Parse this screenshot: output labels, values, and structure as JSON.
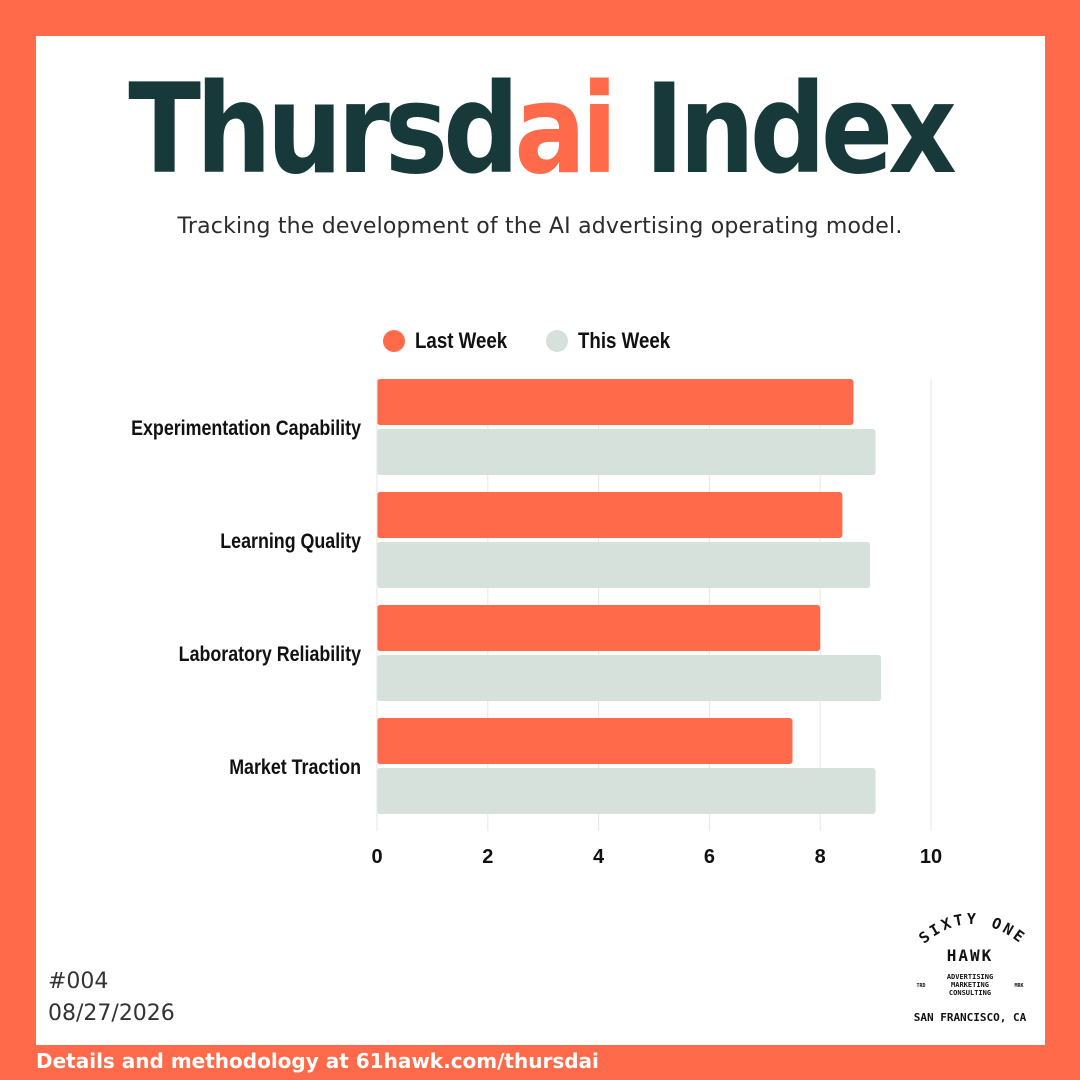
{
  "header": {
    "title_part1": "Thursd",
    "title_accent": "ai",
    "title_part2": " Index",
    "subtitle": "Tracking the development of the AI advertising operating model."
  },
  "colors": {
    "frame": "#ff6b4a",
    "title": "#17393a",
    "last_week": "#ff6b4a",
    "this_week": "#d7e1dc",
    "grid": "#e6e6e6"
  },
  "chart_data": {
    "type": "bar",
    "orientation": "horizontal",
    "categories": [
      "Experimentation Capability",
      "Learning Quality",
      "Laboratory Reliability",
      "Market Traction"
    ],
    "series": [
      {
        "name": "Last Week",
        "values": [
          8.6,
          8.4,
          8.0,
          7.5
        ]
      },
      {
        "name": "This Week",
        "values": [
          9.0,
          8.9,
          9.1,
          9.0
        ]
      }
    ],
    "xlim": [
      0,
      10
    ],
    "xticks": [
      0,
      2,
      4,
      6,
      8,
      10
    ],
    "grid": true,
    "legend": "top"
  },
  "issue": {
    "number": "#004",
    "date": "08/27/2026"
  },
  "footer": {
    "text": "Details and methodology at 61hawk.com/thursdai"
  },
  "logo": {
    "line1": "SIXTY ONE",
    "line2": "HAWK",
    "tag1": "ADVERTISING",
    "tag2": "MARKETING",
    "tag3": "CONSULTING",
    "left_mark": "TRD",
    "right_mark": "MRK",
    "location": "SAN FRANCISCO, CA"
  }
}
